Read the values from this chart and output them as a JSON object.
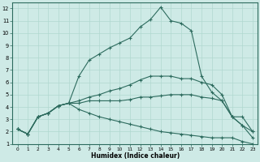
{
  "xlabel": "Humidex (Indice chaleur)",
  "bg_color": "#ceeae6",
  "line_color": "#2d6b5e",
  "grid_color": "#b0d8d0",
  "xlim": [
    -0.5,
    23.5
  ],
  "ylim": [
    1,
    12.5
  ],
  "xticks": [
    0,
    1,
    2,
    3,
    4,
    5,
    6,
    7,
    8,
    9,
    10,
    11,
    12,
    13,
    14,
    15,
    16,
    17,
    18,
    19,
    20,
    21,
    22,
    23
  ],
  "yticks": [
    1,
    2,
    3,
    4,
    5,
    6,
    7,
    8,
    9,
    10,
    11,
    12
  ],
  "line1_x": [
    0,
    1,
    2,
    3,
    4,
    5,
    6,
    7,
    8,
    9,
    10,
    11,
    12,
    13,
    14,
    15,
    16,
    17,
    18,
    19,
    20,
    21,
    22,
    23
  ],
  "line1_y": [
    2.2,
    1.8,
    3.2,
    3.5,
    4.1,
    4.3,
    6.5,
    7.8,
    8.3,
    8.8,
    9.2,
    9.6,
    10.5,
    11.1,
    12.1,
    11.0,
    10.8,
    10.2,
    6.5,
    5.2,
    4.5,
    3.2,
    3.2,
    2.0
  ],
  "line2_x": [
    0,
    1,
    2,
    3,
    4,
    5,
    6,
    7,
    8,
    9,
    10,
    11,
    12,
    13,
    14,
    15,
    16,
    17,
    18,
    19,
    20,
    21,
    22,
    23
  ],
  "line2_y": [
    2.2,
    1.8,
    3.2,
    3.5,
    4.1,
    4.3,
    4.5,
    4.8,
    5.0,
    5.3,
    5.5,
    5.8,
    6.2,
    6.5,
    6.5,
    6.5,
    6.3,
    6.3,
    6.0,
    5.8,
    5.0,
    3.2,
    2.5,
    2.0
  ],
  "line3_x": [
    0,
    1,
    2,
    3,
    4,
    5,
    6,
    7,
    8,
    9,
    10,
    11,
    12,
    13,
    14,
    15,
    16,
    17,
    18,
    19,
    20,
    21,
    22,
    23
  ],
  "line3_y": [
    2.2,
    1.8,
    3.2,
    3.5,
    4.1,
    4.3,
    4.3,
    4.5,
    4.5,
    4.5,
    4.5,
    4.6,
    4.8,
    4.8,
    4.9,
    5.0,
    5.0,
    5.0,
    4.8,
    4.7,
    4.5,
    3.2,
    2.5,
    1.5
  ],
  "line4_x": [
    0,
    1,
    2,
    3,
    4,
    5,
    6,
    7,
    8,
    9,
    10,
    11,
    12,
    13,
    14,
    15,
    16,
    17,
    18,
    19,
    20,
    21,
    22,
    23
  ],
  "line4_y": [
    2.2,
    1.8,
    3.2,
    3.5,
    4.1,
    4.3,
    3.8,
    3.5,
    3.2,
    3.0,
    2.8,
    2.6,
    2.4,
    2.2,
    2.0,
    1.9,
    1.8,
    1.7,
    1.6,
    1.5,
    1.5,
    1.5,
    1.2,
    1.0
  ]
}
